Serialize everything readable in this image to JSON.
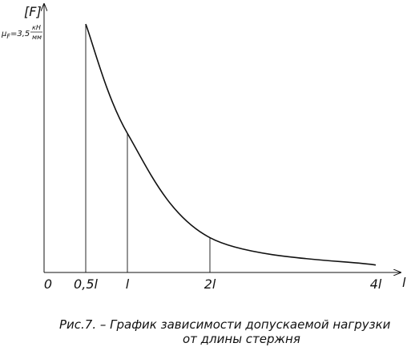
{
  "chart_data": {
    "type": "line",
    "x_unit": "l",
    "x": [
      0.5,
      1,
      2,
      4
    ],
    "y_fraction_of_max": [
      1.0,
      0.56,
      0.14,
      0.03
    ],
    "ticks": [
      {
        "x": 0,
        "label": "0"
      },
      {
        "x": 0.5,
        "label": "0,5l"
      },
      {
        "x": 1,
        "label": "l"
      },
      {
        "x": 2,
        "label": "2l"
      },
      {
        "x": 4,
        "label": "4l"
      }
    ],
    "xlabel": "l",
    "ylabel": "[F]",
    "y_annotation": {
      "prefix": "μ",
      "subscript": "F",
      "value": "=3,5",
      "unit_num": "кН",
      "unit_den": "мм"
    },
    "drop_lines_at": [
      1,
      2
    ]
  },
  "caption": {
    "line1": "Рис.7. – График зависимости допускаемой нагрузки",
    "line2": "от длины стержня"
  }
}
